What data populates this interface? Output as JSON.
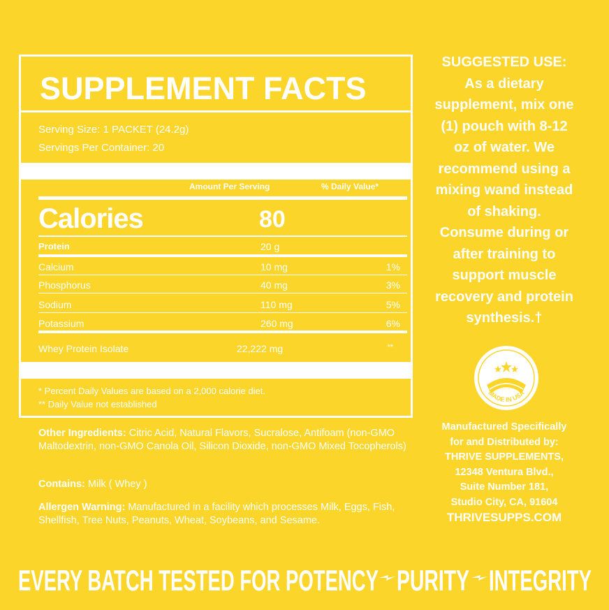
{
  "facts": {
    "title": "SUPPLEMENT FACTS",
    "serving_size": "Serving Size: 1 PACKET (24.2g)",
    "servings_per_container": "Servings Per Container: 20",
    "header_amount": "Amount Per Serving",
    "header_dv": "% Daily Value*",
    "calories_label": "Calories",
    "calories_value": "80",
    "rows": [
      [
        "Protein",
        "20 g",
        ""
      ],
      [
        "Calcium",
        "10 mg",
        "1%"
      ],
      [
        "Phosphorus",
        "40 mg",
        "3%"
      ],
      [
        "Sodium",
        "110 mg",
        "5%"
      ],
      [
        "Potassium",
        "260 mg",
        "6%"
      ],
      [
        "Whey Protein Isolate",
        "22,222 mg",
        "**"
      ]
    ],
    "footnotes": [
      "* Percent Daily Values are based on a 2,000 calorie diet.",
      "** Daily Value not established"
    ]
  },
  "ingredients": [
    {
      "label": "Other Ingredients:",
      "text": " Citric Acid, Natural Flavors, Sucralose, Antifoam (non-GMO Maltodextrin, non-GMO Canola Oil, Silicon Dioxide, non-GMO Mixed Tocopherols)"
    },
    {
      "label": "Contains:",
      "text": " Milk ( Whey )"
    },
    {
      "label": "Allergen Warning:",
      "text": " Manufactured in a facility which processes Milk, Eggs, Fish, Shellfish, Tree Nuts, Peanuts, Wheat, Soybeans, and Sesame."
    }
  ],
  "suggested_use": {
    "title": "SUGGESTED USE:",
    "lines": [
      "As a dietary",
      "supplement, mix one",
      "(1) pouch with 8-12",
      "oz of water. We",
      "recommend using a",
      "mixing wand instead",
      "of shaking.",
      "Consume during or",
      "after training to",
      "support muscle",
      "recovery and protein",
      "synthesis.†"
    ]
  },
  "badge": "MADE IN USA",
  "manufacturer": {
    "lines": [
      "Manufactured Specifically",
      "for and Distributed by:",
      "THRIVE SUPPLEMENTS,",
      "12348 Ventura Blvd.,",
      "Suite Number 181,",
      "Studio City, CA, 91604"
    ],
    "website": "THRIVESUPPS.COM"
  },
  "banner": [
    "EVERY BATCH TESTED FOR POTENCY",
    "PURITY",
    "INTEGRITY"
  ]
}
